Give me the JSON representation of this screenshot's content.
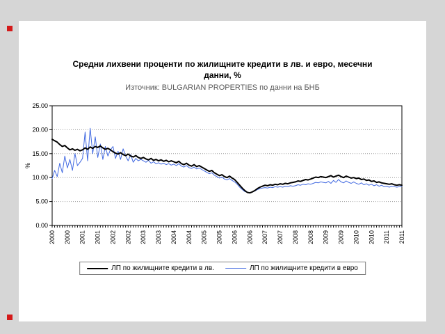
{
  "page": {
    "background_color": "#d6d6d6",
    "panel_color": "#ffffff"
  },
  "chart": {
    "title_line1": "Средни лихвени проценти по жилищните кредити в лв. и евро, месечни",
    "title_line2": "данни, %",
    "subtitle": "Източник: BULGARIAN PROPERTIES по данни на БНБ"
  },
  "chart_data": {
    "type": "line",
    "title": "Средни лихвени проценти по жилищните кредити в лв. и евро, месечни данни, %",
    "subtitle": "Източник: BULGARIAN PROPERTIES по данни на БНБ",
    "xlabel": "",
    "ylabel": "%",
    "ylim": [
      0,
      25
    ],
    "y_ticks": [
      0,
      5,
      10,
      15,
      20,
      25
    ],
    "y_tick_labels": [
      "0.00",
      "5.00",
      "10.00",
      "15.00",
      "20.00",
      "25.00"
    ],
    "grid": true,
    "legend_position": "bottom",
    "x_unit": "month",
    "x_start": "2000-01",
    "x_label_every": 6,
    "x_tick_labels": [
      "2000",
      "2000",
      "2001",
      "2001",
      "2002",
      "2002",
      "2003",
      "2003",
      "2004",
      "2004",
      "2005",
      "2005",
      "2006",
      "2006",
      "2007",
      "2007",
      "2008",
      "2008",
      "2009",
      "2009",
      "2010",
      "2010",
      "2011",
      "2011"
    ],
    "series": [
      {
        "name": "ЛП по жилищните кредити в лв.",
        "color": "#000000",
        "width": 2,
        "values": [
          18.0,
          17.7,
          17.4,
          16.9,
          16.5,
          16.7,
          16.2,
          15.8,
          16.0,
          15.7,
          15.9,
          15.6,
          15.8,
          16.2,
          15.9,
          16.4,
          16.1,
          16.5,
          16.3,
          16.6,
          16.2,
          15.9,
          16.1,
          15.8,
          15.4,
          15.1,
          14.9,
          15.2,
          14.8,
          14.6,
          14.9,
          14.5,
          14.3,
          14.6,
          14.2,
          14.0,
          14.2,
          13.9,
          13.7,
          14.0,
          13.6,
          13.8,
          13.5,
          13.7,
          13.4,
          13.6,
          13.3,
          13.5,
          13.3,
          13.1,
          13.4,
          12.9,
          12.7,
          13.0,
          12.6,
          12.4,
          12.7,
          12.3,
          12.5,
          12.2,
          11.9,
          11.6,
          11.3,
          11.5,
          11.0,
          10.7,
          10.4,
          10.6,
          10.2,
          10.0,
          10.3,
          9.9,
          9.6,
          9.0,
          8.4,
          7.8,
          7.3,
          6.9,
          6.8,
          7.0,
          7.3,
          7.7,
          8.0,
          8.2,
          8.4,
          8.3,
          8.5,
          8.4,
          8.6,
          8.5,
          8.7,
          8.6,
          8.8,
          8.7,
          8.9,
          9.0,
          9.1,
          9.3,
          9.2,
          9.4,
          9.6,
          9.5,
          9.7,
          9.9,
          10.1,
          10.0,
          10.2,
          10.1,
          10.0,
          10.2,
          10.4,
          10.1,
          10.3,
          10.5,
          10.2,
          10.0,
          10.3,
          10.1,
          9.9,
          10.0,
          9.8,
          9.9,
          9.6,
          9.7,
          9.4,
          9.5,
          9.2,
          9.3,
          9.0,
          9.1,
          8.9,
          8.8,
          8.7,
          8.6,
          8.7,
          8.5,
          8.4,
          8.5,
          8.4
        ]
      },
      {
        "name": "ЛП по жилищните кредити в евро",
        "color": "#4169E1",
        "width": 1,
        "values": [
          9.8,
          11.5,
          10.2,
          13.0,
          11.0,
          14.5,
          12.0,
          13.8,
          11.5,
          15.0,
          12.5,
          13.2,
          14.0,
          19.5,
          13.5,
          20.3,
          15.0,
          18.5,
          14.2,
          17.0,
          13.8,
          16.5,
          14.5,
          15.8,
          16.5,
          14.0,
          15.5,
          13.8,
          16.0,
          14.5,
          13.5,
          14.8,
          13.2,
          14.0,
          13.5,
          13.8,
          13.5,
          13.2,
          13.6,
          13.0,
          13.3,
          12.9,
          13.1,
          12.8,
          13.0,
          12.7,
          12.9,
          12.6,
          12.8,
          12.5,
          12.9,
          12.4,
          12.2,
          12.5,
          12.1,
          11.9,
          12.2,
          11.8,
          12.0,
          11.7,
          11.4,
          11.1,
          10.8,
          11.0,
          10.5,
          10.2,
          9.9,
          10.1,
          9.7,
          9.5,
          9.8,
          9.4,
          9.1,
          8.6,
          8.0,
          7.5,
          7.1,
          6.9,
          6.8,
          7.0,
          7.2,
          7.5,
          7.7,
          7.8,
          7.9,
          7.8,
          8.0,
          7.9,
          8.1,
          8.0,
          8.1,
          8.0,
          8.2,
          8.1,
          8.3,
          8.2,
          8.3,
          8.5,
          8.4,
          8.6,
          8.5,
          8.7,
          8.6,
          8.8,
          9.0,
          8.9,
          9.1,
          9.0,
          8.9,
          9.2,
          8.8,
          9.4,
          9.0,
          9.6,
          9.1,
          8.9,
          9.3,
          9.0,
          8.8,
          9.1,
          8.8,
          8.6,
          8.9,
          8.5,
          8.7,
          8.4,
          8.6,
          8.3,
          8.5,
          8.2,
          8.4,
          8.1,
          8.2,
          8.0,
          8.2,
          8.1,
          8.0,
          8.1,
          8.2
        ]
      }
    ]
  }
}
